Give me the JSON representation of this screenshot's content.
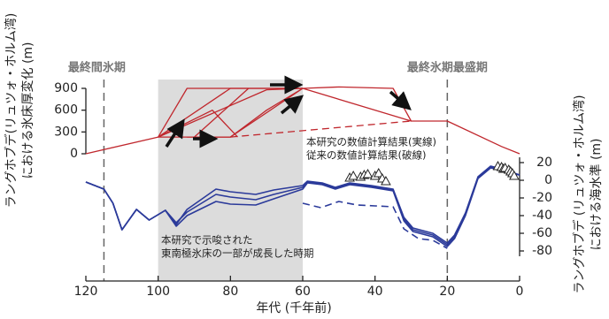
{
  "chart_data": {
    "type": "line",
    "xlabel": "年代 (千年前)",
    "ylabel": [
      "ラングホブデ(リュツォ・ホルム湾)",
      "における氷床厚変化 (m)"
    ],
    "y2label": [
      "ラングホブデ (リュツォ・ホルム湾)",
      "における海水準 (m)"
    ],
    "annotations": [
      {
        "text": "最終間氷期",
        "x": 115
      },
      {
        "text": "最終氷期最盛期",
        "x": 20
      }
    ],
    "shaded_period": [
      100,
      60
    ],
    "shaded_label": [
      "本研究で示唆された",
      "東南極氷床の一部が成長した時期"
    ],
    "model_label": [
      "本研究の数値計算結果(実線)",
      "従来の数値計算結果(破線)"
    ],
    "xlim": [
      120,
      0
    ],
    "xticks": [
      120,
      100,
      80,
      60,
      40,
      20,
      0
    ],
    "ylim": [
      0,
      900
    ],
    "yticks": [
      0,
      300,
      600,
      900
    ],
    "y2lim": [
      -86,
      26
    ],
    "y2ticks": [
      20,
      0,
      -20,
      -40,
      -60,
      -80
    ],
    "series": [
      {
        "color": "#c0272d",
        "x": [
          120,
          100,
          92,
          60,
          50,
          35,
          30,
          20,
          5,
          0
        ],
        "values": [
          0,
          230,
          900,
          900,
          920,
          900,
          450,
          450,
          100,
          0
        ]
      },
      {
        "color": "#c0272d",
        "x": [
          100,
          80,
          60,
          30
        ],
        "values": [
          230,
          900,
          900,
          450
        ]
      },
      {
        "color": "#c0272d",
        "x": [
          100,
          70,
          60
        ],
        "values": [
          230,
          880,
          900
        ]
      },
      {
        "color": "#c0272d",
        "x": [
          100,
          80,
          60
        ],
        "values": [
          230,
          230,
          900
        ]
      },
      {
        "color": "#c0272d",
        "x": [
          92,
          80,
          70,
          60
        ],
        "values": [
          230,
          230,
          600,
          900
        ]
      },
      {
        "color": "#c0272d",
        "x": [
          90,
          75
        ],
        "values": [
          230,
          900
        ]
      },
      {
        "color": "#c0272d",
        "x": [
          100,
          85,
          78
        ],
        "values": [
          230,
          600,
          230
        ]
      },
      {
        "color": "#c0272d",
        "x": [
          80,
          30
        ],
        "values": [
          230,
          450
        ],
        "dashed": true
      },
      {
        "color": "#2b3a9a",
        "axis": "y2",
        "x": [
          120,
          115,
          112.5,
          110,
          106,
          102.5,
          98,
          95,
          92,
          84,
          80,
          73,
          68,
          60,
          58.7,
          54.6,
          51,
          47,
          41,
          38,
          35,
          32,
          29.5,
          24,
          20,
          18,
          15,
          11.5,
          8,
          4,
          2,
          0
        ],
        "values": [
          -2,
          -10,
          -26,
          -56,
          -33,
          -45,
          -34,
          -50,
          -33,
          -10,
          -13,
          -16,
          -11,
          -6,
          -1,
          -3,
          -8,
          -3,
          -6,
          -8,
          -10,
          -42,
          -54,
          -60,
          -71,
          -62,
          -37,
          4,
          16,
          12,
          9,
          6
        ]
      },
      {
        "color": "#2b3a9a",
        "axis": "y2",
        "x": [
          120,
          115,
          112.5,
          110,
          106,
          102.5,
          98,
          95,
          92,
          84,
          80,
          73,
          68,
          60,
          58.7,
          54.6,
          51,
          47,
          41,
          38,
          35,
          32,
          29.5,
          24,
          20,
          18,
          15,
          11.5,
          8,
          4,
          2,
          0
        ],
        "values": [
          -2,
          -10,
          -26,
          -56,
          -33,
          -45,
          -34,
          -48,
          -36,
          -16,
          -19,
          -22,
          -16,
          -8,
          -2,
          -4,
          -9,
          -4,
          -7,
          -9,
          -11,
          -44,
          -56,
          -62,
          -73,
          -64,
          -38,
          3,
          15,
          11,
          8,
          6
        ]
      },
      {
        "color": "#2b3a9a",
        "axis": "y2",
        "x": [
          120,
          115,
          112.5,
          110,
          106,
          102.5,
          98,
          95,
          92,
          84,
          80,
          73,
          68,
          60,
          58.7,
          54.6,
          51,
          47,
          41,
          38,
          35,
          32,
          29.5,
          24,
          20,
          18,
          15,
          11.5,
          8,
          4,
          2,
          0
        ],
        "values": [
          -2,
          -10,
          -26,
          -56,
          -33,
          -45,
          -34,
          -52,
          -40,
          -24,
          -27,
          -28,
          -21,
          -10,
          -3,
          -5,
          -10,
          -5,
          -8,
          -10,
          -12,
          -46,
          -58,
          -64,
          -75,
          -66,
          -40,
          2,
          14,
          10,
          7,
          6
        ]
      },
      {
        "color": "#2b3a9a",
        "axis": "y2",
        "dashed": true,
        "x": [
          60,
          55,
          50,
          45,
          40,
          35,
          32,
          28,
          24,
          20
        ],
        "values": [
          -26,
          -31,
          -24,
          -28,
          -29,
          -30,
          -55,
          -66,
          -68,
          -77
        ]
      },
      {
        "color": "#222222",
        "axis": "y2",
        "marker": "triangle",
        "x": [
          47,
          46,
          44,
          43,
          42,
          40,
          39,
          38,
          37,
          6,
          5,
          4.5,
          4,
          3,
          2.5,
          2,
          1.5
        ],
        "values": [
          3,
          5,
          4,
          6,
          7,
          5,
          8,
          2,
          -1,
          16,
          15,
          13,
          14,
          12,
          10,
          8,
          5
        ]
      }
    ]
  }
}
